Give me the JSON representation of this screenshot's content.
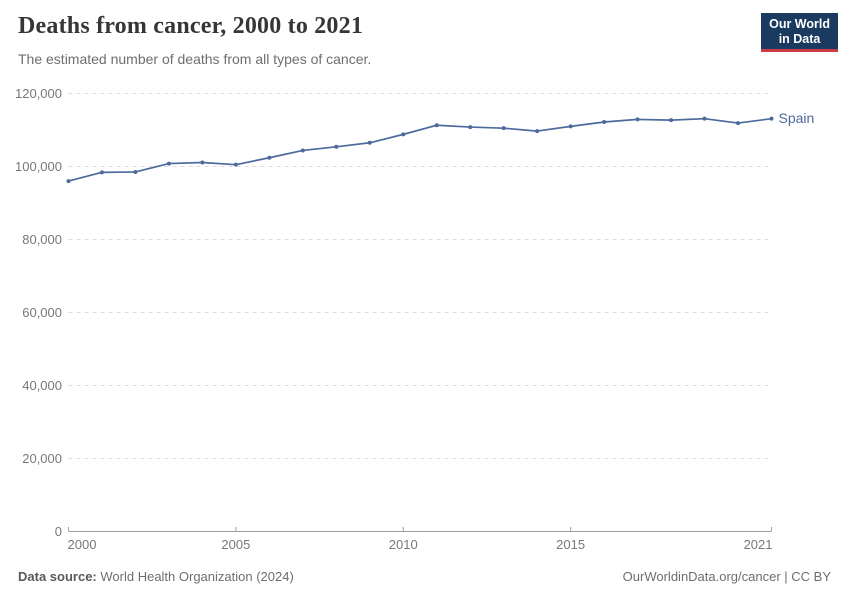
{
  "header": {
    "title": "Deaths from cancer, 2000 to 2021",
    "subtitle": "The estimated number of deaths from all types of cancer."
  },
  "logo": {
    "line1": "Our World",
    "line2": "in Data",
    "bg_color": "#1b3a5f",
    "accent_color": "#cc3b45"
  },
  "footer": {
    "source_label": "Data source:",
    "source_text": "World Health Organization (2024)",
    "link_text": "OurWorldinData.org/cancer | CC BY"
  },
  "colors": {
    "series_blue": "#4c6a9c",
    "gridline": "#dcdcdc",
    "axis": "#9e9e9e",
    "tick_text": "#787878"
  },
  "chart_data": {
    "type": "line",
    "title": "Deaths from cancer, 2000 to 2021",
    "xlabel": "",
    "ylabel": "",
    "grid": "horizontal-dashed",
    "legend_position": "end-of-line-label",
    "xlim": [
      2000,
      2021
    ],
    "ylim": [
      0,
      120000
    ],
    "x": [
      2000,
      2001,
      2002,
      2003,
      2004,
      2005,
      2006,
      2007,
      2008,
      2009,
      2010,
      2011,
      2012,
      2013,
      2014,
      2015,
      2016,
      2017,
      2018,
      2019,
      2020,
      2021
    ],
    "series": [
      {
        "name": "Spain",
        "color": "#4c6a9c",
        "values": [
          96000,
          98400,
          98500,
          100800,
          101100,
          100500,
          102400,
          104400,
          105400,
          106500,
          108800,
          111300,
          110800,
          110500,
          109700,
          111000,
          112200,
          112900,
          112700,
          113100,
          111900,
          113100
        ]
      }
    ],
    "yticks": [
      {
        "value": 0,
        "label": "0"
      },
      {
        "value": 20000,
        "label": "20,000"
      },
      {
        "value": 40000,
        "label": "40,000"
      },
      {
        "value": 60000,
        "label": "60,000"
      },
      {
        "value": 80000,
        "label": "80,000"
      },
      {
        "value": 100000,
        "label": "100,000"
      },
      {
        "value": 120000,
        "label": "120,000"
      }
    ],
    "xticks": [
      {
        "value": 2000,
        "label": "2000"
      },
      {
        "value": 2005,
        "label": "2005"
      },
      {
        "value": 2010,
        "label": "2010"
      },
      {
        "value": 2015,
        "label": "2015"
      },
      {
        "value": 2021,
        "label": "2021"
      }
    ]
  }
}
